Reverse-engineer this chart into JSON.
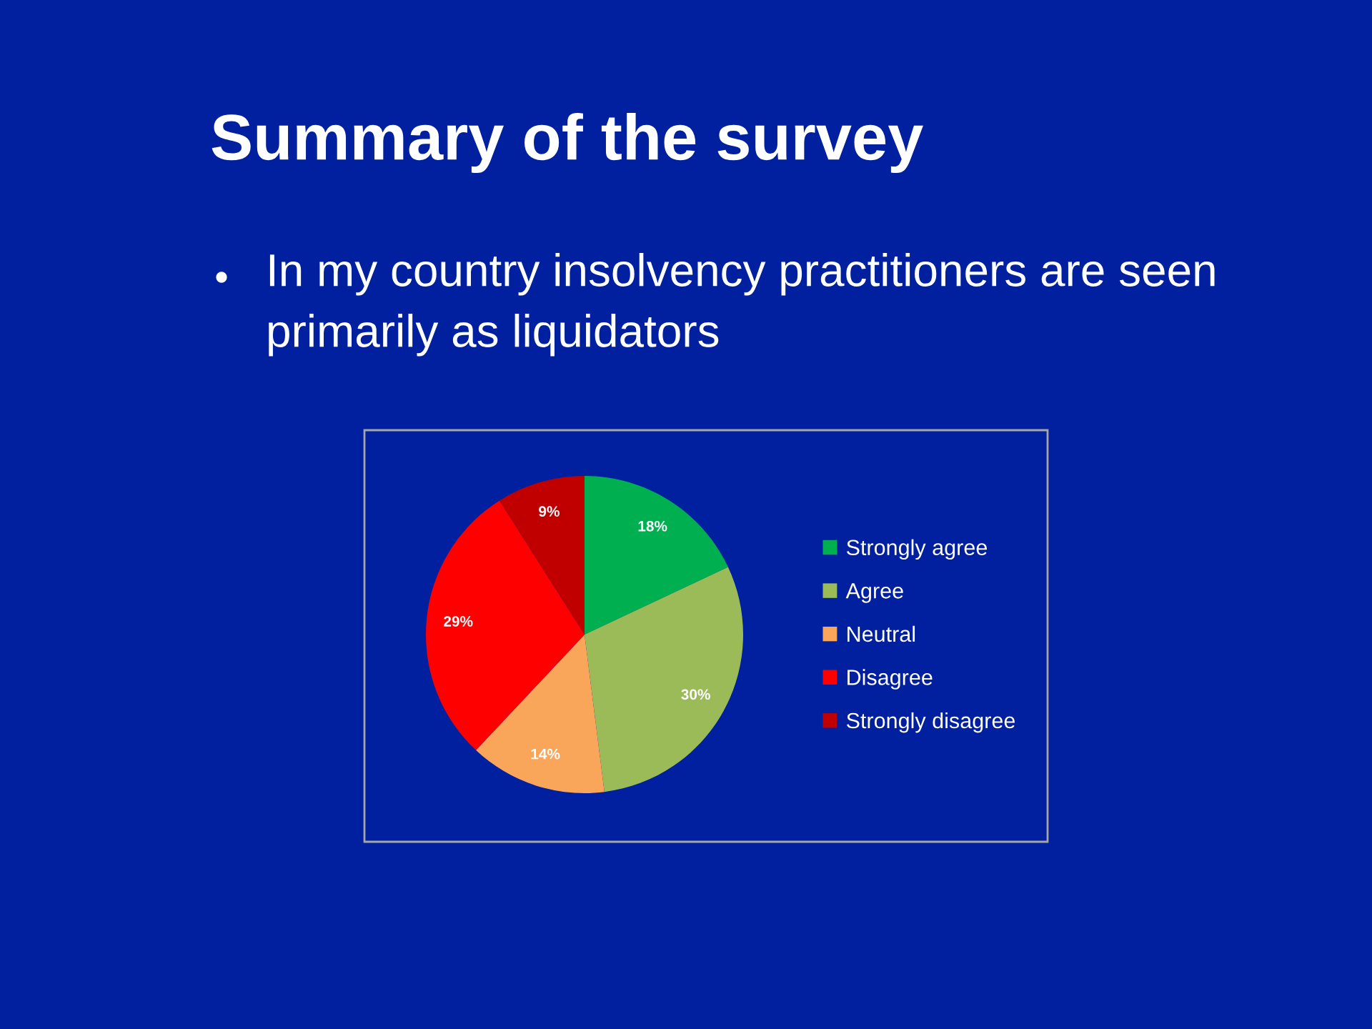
{
  "chart_data": {
    "type": "pie",
    "title": "Summary of the survey",
    "subtitle": "In my country insolvency practitioners are seen primarily as liquidators",
    "categories": [
      "Strongly agree",
      "Agree",
      "Neutral",
      "Disagree",
      "Strongly disagree"
    ],
    "values": [
      18,
      30,
      14,
      29,
      9
    ],
    "colors": [
      "#00b050",
      "#9bbb59",
      "#f9a65a",
      "#ff0000",
      "#c00000"
    ],
    "value_labels": [
      "18%",
      "30%",
      "14%",
      "29%",
      "9%"
    ],
    "legend": "right"
  }
}
